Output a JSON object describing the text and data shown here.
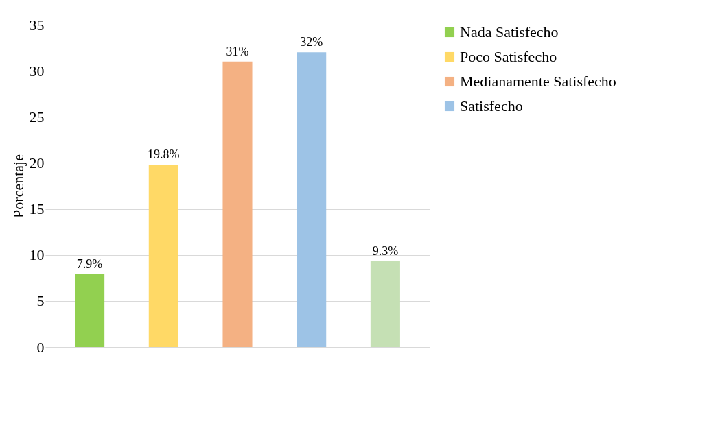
{
  "chart_data": {
    "type": "bar",
    "ylabel": "Porcentaje",
    "stacked": true,
    "categories": [
      null,
      null,
      null,
      null,
      null
    ],
    "series": [
      {
        "name": "Nada Satisfecho",
        "color": "#92d050",
        "values": [
          7.9,
          null,
          null,
          null,
          null
        ],
        "value_labels": [
          "7.9%",
          null,
          null,
          null,
          null
        ]
      },
      {
        "name": "Poco Satisfecho",
        "color": "#ffd966",
        "values": [
          null,
          19.8,
          null,
          null,
          null
        ],
        "value_labels": [
          null,
          "19.8%",
          null,
          null,
          null
        ]
      },
      {
        "name": "Medianamente Satisfecho",
        "color": "#f4b183",
        "values": [
          null,
          null,
          31,
          null,
          null
        ],
        "value_labels": [
          null,
          null,
          "31%",
          null,
          null
        ]
      },
      {
        "name": "Satisfecho",
        "color": "#9dc3e6",
        "values": [
          null,
          null,
          null,
          32,
          null
        ],
        "value_labels": [
          null,
          null,
          null,
          "32%",
          null
        ]
      },
      {
        "color": "#c5e0b4",
        "values": [
          null,
          null,
          null,
          null,
          9.3
        ],
        "value_labels": [
          null,
          null,
          null,
          null,
          "9.3%"
        ]
      }
    ],
    "ylim": [
      0,
      35
    ],
    "yticks": [
      0,
      5,
      10,
      15,
      20,
      25,
      30,
      35
    ],
    "grid": "y",
    "legend": "right",
    "tick_labels": "y"
  }
}
